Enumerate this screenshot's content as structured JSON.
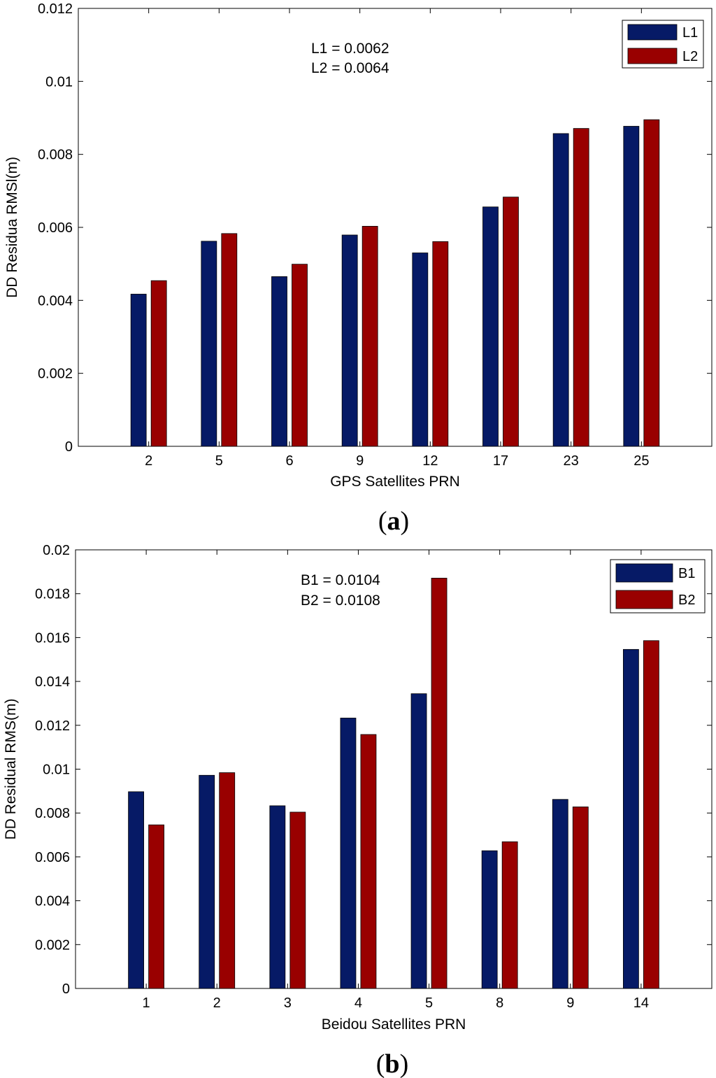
{
  "colors": {
    "series1": "#061A66",
    "series2": "#990000",
    "axis": "#000000",
    "background": "#ffffff"
  },
  "chart_data": [
    {
      "type": "bar",
      "panel": "(a)",
      "panel_letter": "a",
      "xlabel": "GPS Satellites PRN",
      "ylabel": "DD Residua RMSl(m)",
      "ylim": [
        0,
        0.012
      ],
      "yticks": [
        "0",
        "0.002",
        "0.004",
        "0.006",
        "0.008",
        "0.01",
        "0.012"
      ],
      "categories": [
        "2",
        "5",
        "6",
        "9",
        "12",
        "17",
        "23",
        "25"
      ],
      "series": [
        {
          "name": "L1",
          "values": [
            0.00417,
            0.00562,
            0.00465,
            0.00579,
            0.0053,
            0.00656,
            0.00857,
            0.00877
          ]
        },
        {
          "name": "L2",
          "values": [
            0.00454,
            0.00583,
            0.00499,
            0.00603,
            0.00561,
            0.00683,
            0.00871,
            0.00895
          ]
        }
      ],
      "annotations": [
        "L1 = 0.0062",
        "L2 = 0.0064"
      ],
      "legend_position": "top-right",
      "grid": false
    },
    {
      "type": "bar",
      "panel": "(b)",
      "panel_letter": "b",
      "xlabel": "Beidou Satellites PRN",
      "ylabel": "DD Residual RMS(m)",
      "ylim": [
        0,
        0.02
      ],
      "yticks": [
        "0",
        "0.002",
        "0.004",
        "0.006",
        "0.008",
        "0.01",
        "0.012",
        "0.014",
        "0.016",
        "0.018",
        "0.02"
      ],
      "categories": [
        "1",
        "2",
        "3",
        "4",
        "5",
        "8",
        "9",
        "14"
      ],
      "series": [
        {
          "name": "B1",
          "values": [
            0.00897,
            0.00972,
            0.00833,
            0.01233,
            0.01344,
            0.00628,
            0.00862,
            0.01546
          ]
        },
        {
          "name": "B2",
          "values": [
            0.00746,
            0.00984,
            0.00804,
            0.01158,
            0.01871,
            0.00669,
            0.00828,
            0.01586
          ]
        }
      ],
      "annotations": [
        "B1 = 0.0104",
        "B2 = 0.0108"
      ],
      "legend_position": "top-right",
      "grid": false
    }
  ]
}
